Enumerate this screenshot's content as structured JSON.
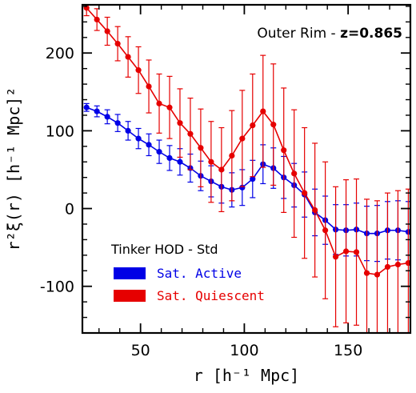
{
  "chart_data": {
    "type": "line",
    "xlabel": "r [h⁻¹ Mpc]",
    "ylabel": "r²ξ(r) [h⁻¹ Mpc]²",
    "xlim": [
      22,
      180
    ],
    "ylim": [
      -160,
      262
    ],
    "xticks": [
      50,
      100,
      150
    ],
    "yticks": [
      -100,
      0,
      100,
      200
    ],
    "grid": false,
    "annotation": {
      "prefix": "Outer Rim - ",
      "bold": "z=0.865"
    },
    "legend": {
      "title": "Tinker HOD - Std",
      "placement": "bottom-left"
    },
    "series": [
      {
        "name": "Sat. Active",
        "color": "#0000e6",
        "x": [
          24,
          29,
          34,
          39,
          44,
          49,
          54,
          59,
          64,
          69,
          74,
          79,
          84,
          89,
          94,
          99,
          104,
          109,
          114,
          119,
          124,
          129,
          134,
          139,
          144,
          149,
          154,
          159,
          164,
          169,
          174,
          179
        ],
        "y": [
          130,
          125,
          118,
          110,
          100,
          90,
          82,
          73,
          65,
          60,
          52,
          42,
          35,
          28,
          24,
          27,
          38,
          57,
          52,
          40,
          30,
          18,
          -5,
          -15,
          -27,
          -28,
          -27,
          -32,
          -32,
          -28,
          -28,
          -30
        ],
        "err": [
          5,
          7,
          9,
          11,
          12,
          13,
          14,
          15,
          16,
          17,
          18,
          19,
          20,
          21,
          22,
          23,
          24,
          25,
          26,
          27,
          28,
          29,
          30,
          31,
          32,
          33,
          34,
          35,
          36,
          37,
          38,
          39
        ]
      },
      {
        "name": "Sat. Quiescent",
        "color": "#e60000",
        "x": [
          24,
          29,
          34,
          39,
          44,
          49,
          54,
          59,
          64,
          69,
          74,
          79,
          84,
          89,
          94,
          99,
          104,
          109,
          114,
          119,
          124,
          129,
          134,
          139,
          144,
          149,
          154,
          159,
          164,
          169,
          174,
          179
        ],
        "y": [
          258,
          243,
          228,
          212,
          195,
          178,
          157,
          135,
          130,
          110,
          96,
          78,
          60,
          50,
          68,
          90,
          107,
          125,
          108,
          75,
          45,
          20,
          -2,
          -28,
          -62,
          -55,
          -56,
          -83,
          -85,
          -75,
          -72,
          -70
        ],
        "err": [
          10,
          14,
          18,
          22,
          26,
          30,
          34,
          38,
          40,
          44,
          46,
          50,
          52,
          54,
          58,
          62,
          66,
          72,
          78,
          80,
          82,
          84,
          86,
          88,
          90,
          92,
          94,
          95,
          95,
          95,
          95,
          95
        ]
      }
    ]
  }
}
